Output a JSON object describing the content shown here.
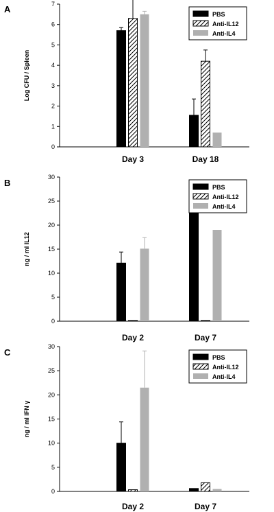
{
  "chart_data": [
    {
      "panel": "A",
      "type": "bar",
      "ylabel": "Log CFU / Spleen",
      "ylim": [
        0,
        7
      ],
      "yticks": [
        0,
        1,
        2,
        3,
        4,
        5,
        6,
        7
      ],
      "categories": [
        "Day 3",
        "Day 18"
      ],
      "legend_position": "top-right",
      "series": [
        {
          "name": "PBS",
          "style": "solid",
          "color": "#000000",
          "values": [
            5.7,
            1.55
          ],
          "errors": [
            0.15,
            0.8
          ]
        },
        {
          "name": "Anti-IL12",
          "style": "hatched",
          "color": "#000000",
          "values": [
            6.3,
            4.2
          ],
          "errors": [
            1.0,
            0.55
          ]
        },
        {
          "name": "Anti-IL4",
          "style": "gray",
          "color": "#b0b0b0",
          "values": [
            6.5,
            0.7
          ],
          "errors": [
            0.15,
            0.0
          ]
        }
      ]
    },
    {
      "panel": "B",
      "type": "bar",
      "ylabel": "ng / ml IL12",
      "ylim": [
        0,
        30
      ],
      "yticks": [
        0,
        5,
        10,
        15,
        20,
        25,
        30
      ],
      "categories": [
        "Day 2",
        "Day 7"
      ],
      "legend_position": "top-right",
      "series": [
        {
          "name": "PBS",
          "style": "solid",
          "color": "#000000",
          "values": [
            12.1,
            25.4
          ],
          "errors": [
            2.3,
            1.4
          ]
        },
        {
          "name": "Anti-IL12",
          "style": "hatched",
          "color": "#000000",
          "values": [
            0.15,
            0.15
          ],
          "errors": [
            0.0,
            0.0
          ]
        },
        {
          "name": "Anti-IL4",
          "style": "gray",
          "color": "#b0b0b0",
          "values": [
            15.1,
            19.0
          ],
          "errors": [
            2.3,
            0.0
          ]
        }
      ]
    },
    {
      "panel": "C",
      "type": "bar",
      "ylabel": "ng / ml IFN γ",
      "ylim": [
        0,
        30
      ],
      "yticks": [
        0,
        5,
        10,
        15,
        20,
        25,
        30
      ],
      "categories": [
        "Day 2",
        "Day 7"
      ],
      "legend_position": "top-right",
      "series": [
        {
          "name": "PBS",
          "style": "solid",
          "color": "#000000",
          "values": [
            10.0,
            0.6
          ],
          "errors": [
            4.4,
            0.0
          ]
        },
        {
          "name": "Anti-IL12",
          "style": "hatched",
          "color": "#000000",
          "values": [
            0.35,
            1.8
          ],
          "errors": [
            0.0,
            0.0
          ]
        },
        {
          "name": "Anti-IL4",
          "style": "gray",
          "color": "#b0b0b0",
          "values": [
            21.5,
            0.5
          ],
          "errors": [
            7.6,
            0.0
          ]
        }
      ]
    }
  ]
}
